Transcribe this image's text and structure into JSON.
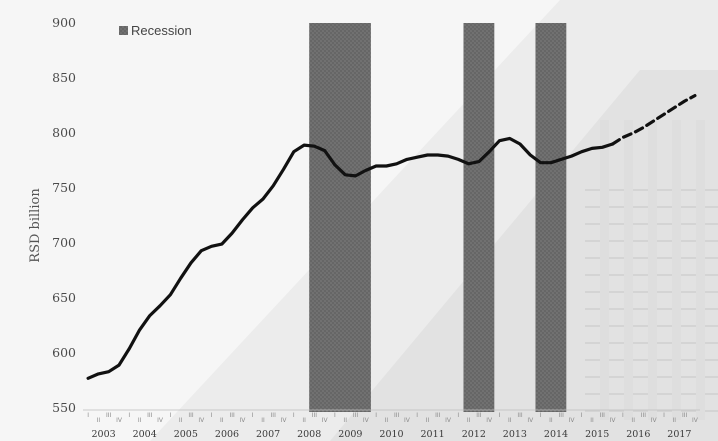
{
  "chart_data": {
    "type": "line",
    "title": "",
    "xlabel": "",
    "ylabel": "RSD billion",
    "ylim": [
      550,
      900
    ],
    "yticks": [
      550,
      600,
      650,
      700,
      750,
      800,
      850,
      900
    ],
    "year_labels": [
      "2003",
      "2004",
      "2005",
      "2006",
      "2007",
      "2008",
      "2009",
      "2010",
      "2011",
      "2012",
      "2013",
      "2014",
      "2015",
      "2016",
      "2017"
    ],
    "quarter_labels": [
      "I",
      "II",
      "III",
      "IV"
    ],
    "legend": {
      "label": "Recession",
      "position": "top-left"
    },
    "recession_periods": [
      {
        "start": "2008 Q3",
        "end": "2009 Q4"
      },
      {
        "start": "2012 Q2",
        "end": "2012 Q4"
      },
      {
        "start": "2014 Q1",
        "end": "2014 Q3"
      }
    ],
    "series": [
      {
        "style": "solid",
        "x": [
          "2003 Q1",
          "2003 Q2",
          "2003 Q3",
          "2003 Q4",
          "2004 Q1",
          "2004 Q2",
          "2004 Q3",
          "2004 Q4",
          "2005 Q1",
          "2005 Q2",
          "2005 Q3",
          "2005 Q4",
          "2006 Q1",
          "2006 Q2",
          "2006 Q3",
          "2006 Q4",
          "2007 Q1",
          "2007 Q2",
          "2007 Q3",
          "2007 Q4",
          "2008 Q1",
          "2008 Q2",
          "2008 Q3",
          "2008 Q4",
          "2009 Q1",
          "2009 Q2",
          "2009 Q3",
          "2009 Q4",
          "2010 Q1",
          "2010 Q2",
          "2010 Q3",
          "2010 Q4",
          "2011 Q1",
          "2011 Q2",
          "2011 Q3",
          "2011 Q4",
          "2012 Q1",
          "2012 Q2",
          "2012 Q3",
          "2012 Q4",
          "2013 Q1",
          "2013 Q2",
          "2013 Q3",
          "2013 Q4",
          "2014 Q1",
          "2014 Q2",
          "2014 Q3",
          "2014 Q4",
          "2015 Q1",
          "2015 Q2",
          "2015 Q3",
          "2015 Q4"
        ],
        "values": [
          577,
          581,
          583,
          589,
          604,
          621,
          634,
          643,
          653,
          668,
          682,
          693,
          697,
          699,
          709,
          721,
          732,
          740,
          752,
          767,
          783,
          789,
          788,
          784,
          771,
          762,
          761,
          766,
          770,
          770,
          772,
          776,
          778,
          780,
          780,
          779,
          776,
          772,
          774,
          783,
          793,
          795,
          790,
          780,
          773,
          773,
          776,
          779,
          783,
          786,
          787,
          790
        ]
      },
      {
        "style": "dashed",
        "x": [
          "2015 Q4",
          "2016 Q1",
          "2016 Q2",
          "2016 Q3",
          "2016 Q4",
          "2017 Q1",
          "2017 Q2",
          "2017 Q3",
          "2017 Q4"
        ],
        "values": [
          790,
          796,
          800,
          805,
          811,
          817,
          823,
          829,
          834
        ]
      }
    ]
  }
}
